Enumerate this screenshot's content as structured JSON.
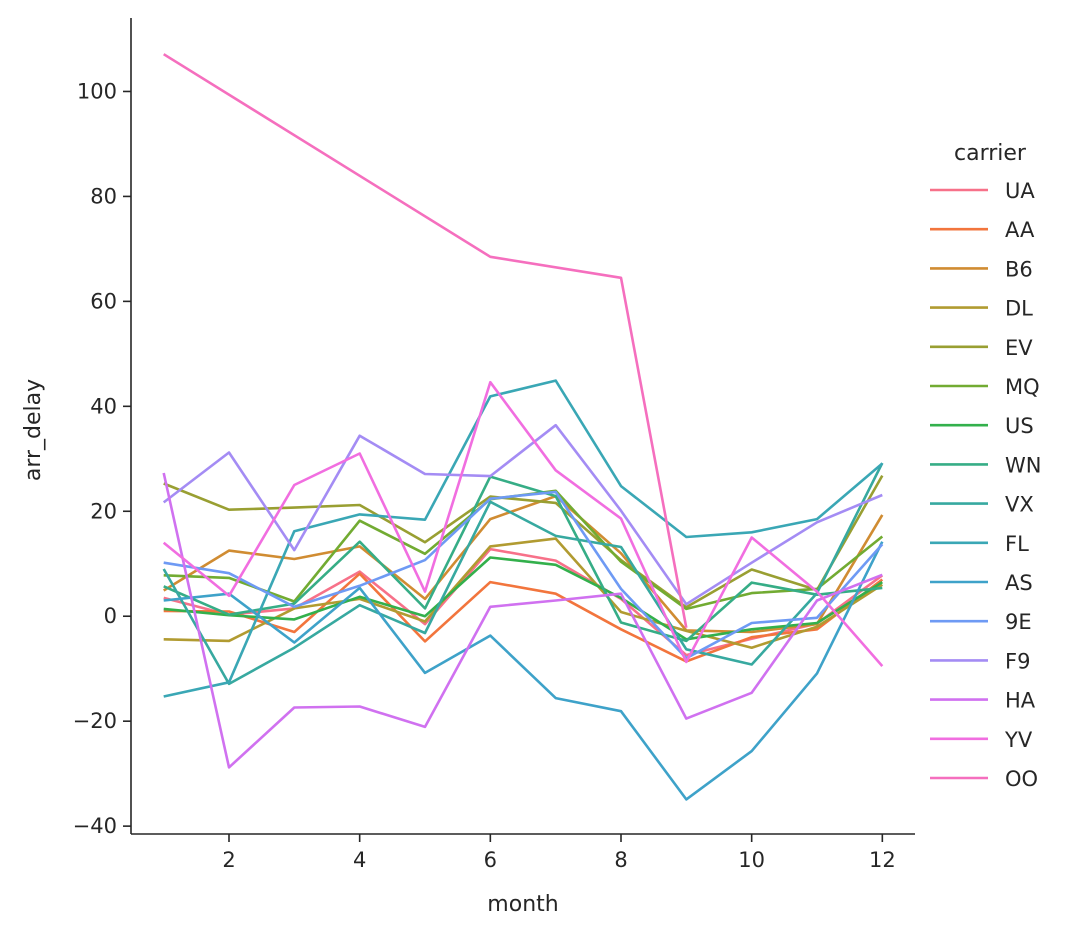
{
  "chart_data": {
    "type": "line",
    "xlabel": "month",
    "ylabel": "arr_delay",
    "xlim": [
      0.5,
      12.5
    ],
    "ylim": [
      -41.5,
      114
    ],
    "xticks": [
      2,
      4,
      6,
      8,
      10,
      12
    ],
    "yticks": [
      -40,
      -20,
      0,
      20,
      40,
      60,
      80,
      100
    ],
    "tick_labels_x": [
      "2",
      "4",
      "6",
      "8",
      "10",
      "12"
    ],
    "tick_labels_y": [
      "−40",
      "−20",
      "0",
      "20",
      "40",
      "60",
      "80",
      "100"
    ],
    "grid": false,
    "legend": {
      "title": "carrier",
      "placement": "right"
    },
    "x": [
      1,
      2,
      3,
      4,
      5,
      6,
      7,
      8,
      9,
      10,
      11,
      12
    ],
    "series": [
      {
        "name": "UA",
        "color": "#f77189",
        "values": [
          3.5,
          0.3,
          1.5,
          8.5,
          -1.5,
          12.8,
          10.6,
          3.3,
          -7.4,
          -4.3,
          -1.4,
          7.8
        ]
      },
      {
        "name": "AA",
        "color": "#f2753d",
        "values": [
          1.0,
          0.9,
          -3.0,
          8.1,
          -4.8,
          6.5,
          4.3,
          -2.5,
          -8.6,
          -4.0,
          -2.5,
          7.0
        ]
      },
      {
        "name": "B6",
        "color": "#d08c32",
        "values": [
          4.9,
          12.5,
          10.9,
          13.3,
          3.3,
          18.5,
          22.9,
          12.0,
          -2.7,
          -3.0,
          -1.5,
          19.3
        ]
      },
      {
        "name": "DL",
        "color": "#b19b31",
        "values": [
          -4.4,
          -4.7,
          1.5,
          3.3,
          -1.0,
          13.3,
          14.8,
          0.8,
          -2.8,
          -6.0,
          -2.0,
          6.0
        ]
      },
      {
        "name": "EV",
        "color": "#999f32",
        "values": [
          25.3,
          20.3,
          20.7,
          21.2,
          14.1,
          22.8,
          21.6,
          10.7,
          1.7,
          8.9,
          5.0,
          26.8
        ]
      },
      {
        "name": "MQ",
        "color": "#72ab32",
        "values": [
          7.8,
          7.3,
          2.8,
          18.2,
          11.9,
          22.3,
          23.9,
          10.4,
          1.4,
          4.4,
          5.2,
          15.2
        ]
      },
      {
        "name": "US",
        "color": "#33b04c",
        "values": [
          1.4,
          0.2,
          -0.6,
          3.7,
          0.0,
          11.2,
          9.8,
          3.5,
          -4.4,
          -2.5,
          -1.3,
          6.5
        ]
      },
      {
        "name": "WN",
        "color": "#36ad86",
        "values": [
          5.7,
          0.3,
          2.4,
          14.2,
          1.5,
          26.6,
          22.9,
          -1.2,
          -4.7,
          6.4,
          4.1,
          5.4
        ]
      },
      {
        "name": "VX",
        "color": "#37a9a0",
        "values": [
          9.0,
          -12.9,
          -6.0,
          2.1,
          -3.2,
          21.8,
          15.3,
          13.2,
          -6.3,
          -9.2,
          4.4,
          29.2
        ]
      },
      {
        "name": "FL",
        "color": "#3aa7b5",
        "values": [
          -15.3,
          -12.6,
          16.2,
          19.4,
          18.4,
          41.9,
          44.9,
          24.8,
          15.1,
          16.0,
          18.5,
          29.1
        ]
      },
      {
        "name": "AS",
        "color": "#3ea2c9",
        "values": [
          3.0,
          4.3,
          -5.0,
          5.4,
          -10.8,
          -3.7,
          -15.6,
          -18.1,
          -34.9,
          -25.7,
          -10.9,
          14.2
        ]
      },
      {
        "name": "9E",
        "color": "#6e9af4",
        "values": [
          10.2,
          8.2,
          1.8,
          5.8,
          10.7,
          22.4,
          23.7,
          5.2,
          -8.0,
          -1.3,
          -0.3,
          13.7
        ]
      },
      {
        "name": "F9",
        "color": "#a48cf4",
        "values": [
          21.7,
          31.2,
          12.6,
          34.4,
          27.1,
          26.7,
          36.4,
          20.1,
          2.3,
          10.2,
          17.9,
          23.1
        ]
      },
      {
        "name": "HA",
        "color": "#d071f0",
        "values": [
          27.3,
          -28.8,
          -17.4,
          -17.2,
          -21.1,
          1.8,
          3.0,
          4.3,
          -19.5,
          -14.6,
          3.0,
          7.9
        ]
      },
      {
        "name": "YV",
        "color": "#f16ee0",
        "values": [
          14.0,
          3.9,
          25.0,
          31.0,
          4.7,
          44.6,
          27.8,
          18.6,
          -8.7,
          15.0,
          4.7,
          -9.5
        ]
      },
      {
        "name": "OO",
        "color": "#f56fbe",
        "values": [
          107.1,
          null,
          null,
          null,
          null,
          68.5,
          null,
          64.5,
          -2.2,
          null,
          null,
          null
        ]
      }
    ]
  }
}
